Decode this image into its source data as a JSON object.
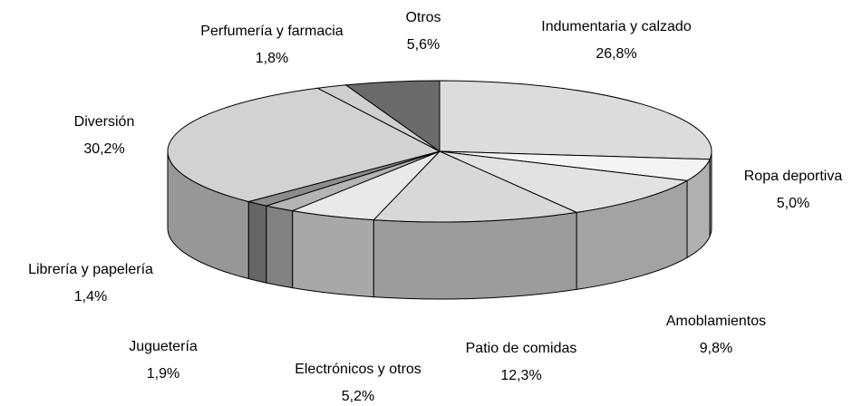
{
  "chart_data": {
    "type": "pie3d",
    "categories": [
      "Indumentaria y calzado",
      "Ropa deportiva",
      "Amoblamientos",
      "Patio de comidas",
      "Electrónicos y otros",
      "Juguetería",
      "Librería y papelería",
      "Diversión",
      "Perfumería y farmacia",
      "Otros"
    ],
    "values": [
      26.8,
      5.0,
      9.8,
      12.3,
      5.2,
      1.9,
      1.4,
      30.2,
      1.8,
      5.6
    ],
    "value_labels": [
      "26,8%",
      "5,0%",
      "9,8%",
      "12,3%",
      "5,2%",
      "1,9%",
      "1,4%",
      "30,2%",
      "1,8%",
      "5,6%"
    ],
    "colors": [
      "#dcdcdc",
      "#f4f4f4",
      "#e2e2e2",
      "#d8d8d8",
      "#e9e9e9",
      "#b4b4b4",
      "#8c8c8c",
      "#d2d2d2",
      "#cfcfcf",
      "#6a6a6a"
    ]
  }
}
